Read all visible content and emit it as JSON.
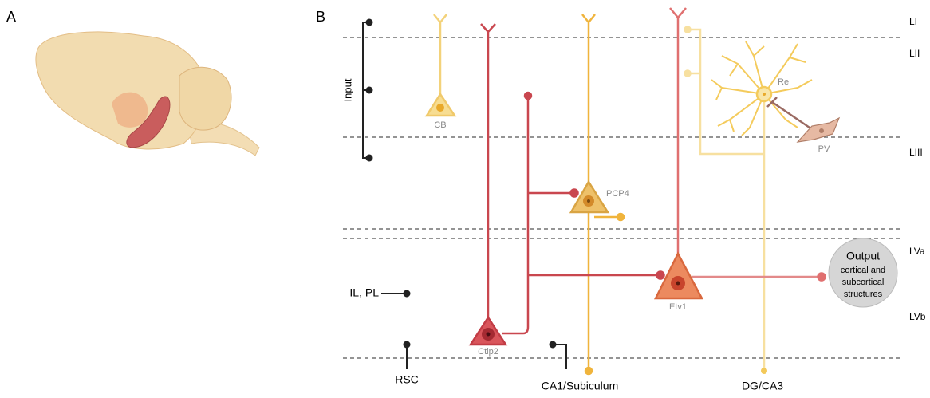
{
  "panels": {
    "a": "A",
    "b": "B"
  },
  "layers": [
    "LI",
    "LII",
    "LIII",
    "LVa",
    "LVb"
  ],
  "inputs": {
    "bracket": "Input",
    "il_pl": "IL, PL",
    "rsc": "RSC",
    "ca1": "CA1/Subiculum",
    "dg": "DG/CA3"
  },
  "cells": {
    "cb": "CB",
    "ctip2": "Ctip2",
    "pcp4": "PCP4",
    "etv1": "Etv1",
    "re": "Re",
    "pv": "PV"
  },
  "output": {
    "title": "Output",
    "lines": [
      "cortical and",
      "subcortical",
      "structures"
    ]
  }
}
